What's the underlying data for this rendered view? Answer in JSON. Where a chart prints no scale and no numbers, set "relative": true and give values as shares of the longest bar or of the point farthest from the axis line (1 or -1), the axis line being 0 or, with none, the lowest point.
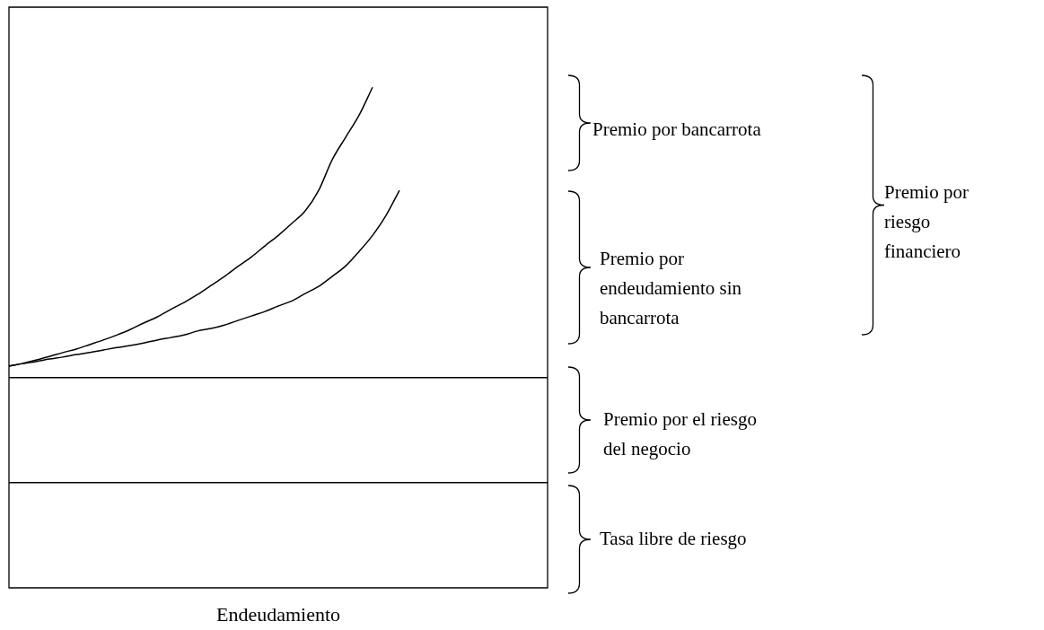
{
  "chart_data": {
    "type": "line",
    "relative": true,
    "xlabel": "Endeudamiento",
    "legend": false,
    "marker": "none",
    "categories": [
      null,
      null,
      null,
      null,
      null,
      null,
      null,
      null,
      null,
      null,
      null,
      null,
      null,
      null,
      null,
      null,
      null,
      null,
      null,
      null,
      null,
      null,
      null,
      null,
      null,
      null,
      null,
      null,
      null,
      null,
      null,
      null,
      null,
      null,
      null,
      null,
      null,
      null,
      null,
      null,
      null
    ],
    "series": [
      {
        "color": "#000000",
        "values": [
          0.21,
          0.21,
          0.21,
          0.21,
          0.21,
          0.21,
          0.21,
          0.21,
          0.21,
          0.21,
          0.21,
          0.21,
          0.21,
          0.21,
          0.21,
          0.21,
          0.21,
          0.21,
          0.21,
          0.21,
          0.21,
          0.21,
          0.21,
          0.21,
          0.21,
          0.21,
          0.21,
          0.21,
          0.21,
          0.21,
          0.21,
          0.21,
          0.21,
          0.21,
          0.21,
          0.21,
          0.21,
          0.21,
          0.21,
          0.21,
          0.21
        ]
      },
      {
        "color": "#000000",
        "values": [
          0.42,
          0.42,
          0.42,
          0.42,
          0.42,
          0.42,
          0.42,
          0.42,
          0.42,
          0.42,
          0.42,
          0.42,
          0.42,
          0.42,
          0.42,
          0.42,
          0.42,
          0.42,
          0.42,
          0.42,
          0.42,
          0.42,
          0.42,
          0.42,
          0.42,
          0.42,
          0.42,
          0.42,
          0.42,
          0.42,
          0.42,
          0.42,
          0.42,
          0.42,
          0.42,
          0.42,
          0.42,
          0.42,
          0.42,
          0.42,
          0.42
        ]
      },
      {
        "color": "#000000",
        "values": [
          0.443,
          0.448,
          0.455,
          0.462,
          0.47,
          0.477,
          0.486,
          0.495,
          0.505,
          0.516,
          0.529,
          0.541,
          0.556,
          0.57,
          0.586,
          0.604,
          0.622,
          0.642,
          0.661,
          0.683,
          0.704,
          0.728,
          0.753,
          0.794,
          0.855,
          0.9,
          0.944,
          1,
          null,
          null,
          null,
          null,
          null,
          null,
          null,
          null,
          null,
          null,
          null,
          null,
          null
        ]
      },
      {
        "color": "#000000",
        "values": [
          0.443,
          0.448,
          0.452,
          0.457,
          0.461,
          0.466,
          0.47,
          0.475,
          0.48,
          0.484,
          0.489,
          0.495,
          0.5,
          0.505,
          0.513,
          0.518,
          0.525,
          0.534,
          0.543,
          0.552,
          0.563,
          0.573,
          0.588,
          0.602,
          0.622,
          0.643,
          0.672,
          0.704,
          0.744,
          0.794,
          null,
          null,
          null,
          null,
          null,
          null,
          null,
          null,
          null,
          null,
          null
        ]
      }
    ],
    "annotations": [
      "Premio por bancarrota",
      "Premio por endeudamiento sin bancarrota",
      "Premio por el riesgo del negocio",
      "Tasa libre de riesgo",
      "Premio por riesgo financiero"
    ]
  }
}
